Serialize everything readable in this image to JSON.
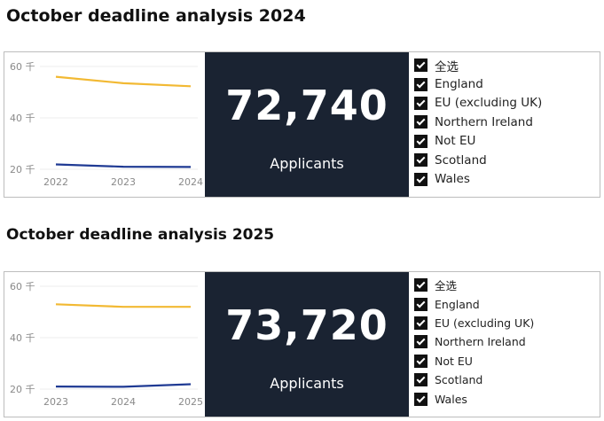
{
  "reports": [
    {
      "title": "October deadline analysis 2024",
      "kpi": {
        "value": "72,740",
        "label": "Applicants"
      },
      "slicer": [
        "全选",
        "England",
        "EU (excluding UK)",
        "Northern Ireland",
        "Not EU",
        "Scotland",
        "Wales"
      ],
      "chart_data": {
        "type": "line",
        "x": [
          "2022",
          "2023",
          "2024"
        ],
        "y_ticks": [
          "60 千",
          "40 千",
          "20 千"
        ],
        "ylim": [
          20000,
          60000
        ],
        "grid": true,
        "series": [
          {
            "color": "#f2b933",
            "values": [
              56000,
              53500,
              52300
            ]
          },
          {
            "color": "#1f3a93",
            "values": [
              21900,
              21000,
              20900
            ]
          }
        ]
      }
    },
    {
      "title": "October deadline analysis 2025",
      "kpi": {
        "value": "73,720",
        "label": "Applicants"
      },
      "slicer": [
        "全选",
        "England",
        "EU (excluding UK)",
        "Northern Ireland",
        "Not EU",
        "Scotland",
        "Wales"
      ],
      "chart_data": {
        "type": "line",
        "x": [
          "2023",
          "2024",
          "2025"
        ],
        "y_ticks": [
          "60 千",
          "40 千",
          "20 千"
        ],
        "ylim": [
          20000,
          60000
        ],
        "grid": true,
        "series": [
          {
            "color": "#f2b933",
            "values": [
              53000,
              52000,
              52000
            ]
          },
          {
            "color": "#1f3a93",
            "values": [
              21000,
              20900,
              21900
            ]
          }
        ]
      }
    }
  ]
}
